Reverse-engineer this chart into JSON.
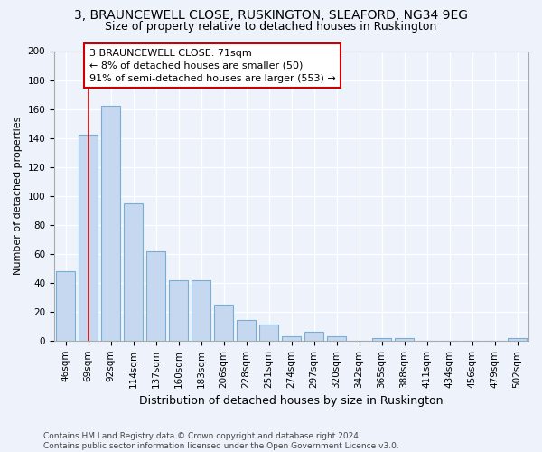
{
  "title": "3, BRAUNCEWELL CLOSE, RUSKINGTON, SLEAFORD, NG34 9EG",
  "subtitle": "Size of property relative to detached houses in Ruskington",
  "xlabel": "Distribution of detached houses by size in Ruskington",
  "ylabel": "Number of detached properties",
  "bar_labels": [
    "46sqm",
    "69sqm",
    "92sqm",
    "114sqm",
    "137sqm",
    "160sqm",
    "183sqm",
    "206sqm",
    "228sqm",
    "251sqm",
    "274sqm",
    "297sqm",
    "320sqm",
    "342sqm",
    "365sqm",
    "388sqm",
    "411sqm",
    "434sqm",
    "456sqm",
    "479sqm",
    "502sqm"
  ],
  "bar_values": [
    48,
    142,
    162,
    95,
    62,
    42,
    42,
    25,
    14,
    11,
    3,
    6,
    3,
    0,
    2,
    2,
    0,
    0,
    0,
    0,
    2
  ],
  "bar_color": "#c5d8f0",
  "bar_edge_color": "#7aadd4",
  "vline_x": 1,
  "vline_color": "#cc0000",
  "annotation_text": "3 BRAUNCEWELL CLOSE: 71sqm\n← 8% of detached houses are smaller (50)\n91% of semi-detached houses are larger (553) →",
  "annotation_box_color": "#ffffff",
  "annotation_box_edge": "#cc0000",
  "ylim": [
    0,
    200
  ],
  "yticks": [
    0,
    20,
    40,
    60,
    80,
    100,
    120,
    140,
    160,
    180,
    200
  ],
  "footer": "Contains HM Land Registry data © Crown copyright and database right 2024.\nContains public sector information licensed under the Open Government Licence v3.0.",
  "bg_color": "#edf2fb",
  "grid_color": "#ffffff",
  "title_fontsize": 10,
  "subtitle_fontsize": 9,
  "xlabel_fontsize": 9,
  "ylabel_fontsize": 8,
  "tick_fontsize": 7.5,
  "footer_fontsize": 6.5,
  "annotation_fontsize": 8
}
